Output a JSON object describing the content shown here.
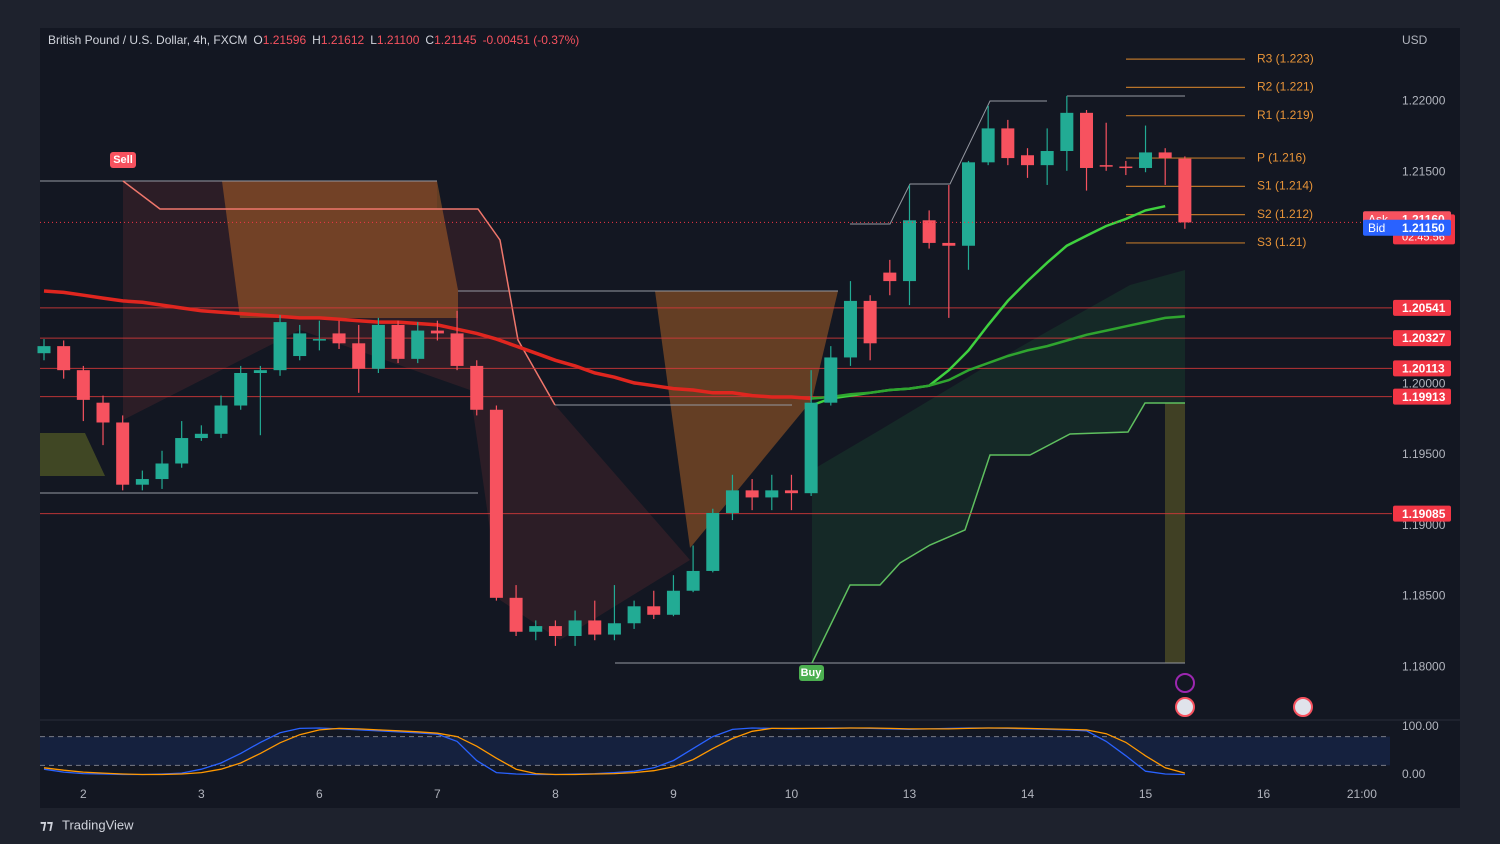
{
  "chart_data": {
    "type": "candlestick",
    "title": "British Pound / U.S. Dollar, 4h, FXCM",
    "ohlc_header": [
      {
        "name": "O",
        "value": 1.21596,
        "label": "1.21596"
      },
      {
        "name": "H",
        "value": 1.21612,
        "label": "1.21612"
      },
      {
        "name": "L",
        "value": 1.211,
        "label": "1.21100"
      },
      {
        "name": "C",
        "value": 1.21145,
        "label": "1.21145"
      }
    ],
    "change": "-0.00451 (-0.37%)",
    "currency": "USD",
    "categories": [
      null,
      null,
      "2",
      null,
      null,
      null,
      null,
      null,
      "3",
      null,
      null,
      null,
      null,
      null,
      "6",
      null,
      null,
      null,
      null,
      null,
      "7",
      null,
      null,
      null,
      null,
      null,
      "8",
      null,
      null,
      null,
      null,
      null,
      "9",
      null,
      null,
      null,
      null,
      null,
      "10",
      null,
      null,
      null,
      null,
      null,
      "13",
      null,
      null,
      null,
      null,
      null,
      "14",
      null,
      null,
      null,
      null,
      null,
      "15",
      null,
      null,
      null,
      null,
      null,
      "16",
      null,
      null,
      null,
      null,
      "21:00"
    ],
    "open": [
      1.2022,
      1.2027,
      1.201,
      1.1987,
      1.1973,
      1.1929,
      1.1933,
      1.1944,
      1.1962,
      1.1965,
      1.1985,
      1.2008,
      1.201,
      1.202,
      1.2031,
      1.2036,
      1.2029,
      1.2011,
      1.2042,
      1.2018,
      1.2038,
      1.2036,
      1.2013,
      1.1982,
      1.1849,
      1.1825,
      1.1829,
      1.1822,
      1.1833,
      1.1823,
      1.1831,
      1.1843,
      1.1837,
      1.1854,
      1.1868,
      1.1909,
      1.1925,
      1.192,
      1.1925,
      1.1923,
      1.1987,
      1.2019,
      1.2059,
      1.2079,
      1.2073,
      1.2116,
      1.21,
      1.2098,
      1.2157,
      1.2181,
      1.2162,
      1.2155,
      1.2165,
      1.2192,
      1.2155,
      1.2154,
      1.2153,
      1.2164,
      1.21596,
      null,
      null,
      null,
      null,
      null,
      null,
      null,
      null,
      null
    ],
    "high": [
      1.2032,
      1.2031,
      1.2013,
      1.1992,
      1.1978,
      1.1939,
      1.1953,
      1.1974,
      1.1971,
      1.1992,
      1.2013,
      1.2013,
      1.2049,
      1.2042,
      1.2045,
      1.2045,
      1.2042,
      1.2047,
      1.2045,
      1.2044,
      1.2045,
      1.2052,
      1.2017,
      1.1985,
      1.1858,
      1.1833,
      1.1833,
      1.184,
      1.1847,
      1.1858,
      1.1847,
      1.1854,
      1.1865,
      1.1886,
      1.1912,
      1.1936,
      1.1933,
      1.1936,
      1.1936,
      1.201,
      1.2027,
      1.2073,
      1.2063,
      1.2088,
      1.2141,
      1.2123,
      1.2141,
      1.2158,
      1.2197,
      1.2187,
      1.2167,
      1.2181,
      1.2204,
      1.2194,
      1.2185,
      1.2158,
      1.2183,
      1.2167,
      1.21612,
      null,
      null,
      null,
      null,
      null,
      null,
      null,
      null,
      null
    ],
    "low": [
      1.2017,
      1.2004,
      1.1974,
      1.1957,
      1.1925,
      1.1925,
      1.1926,
      1.1941,
      1.196,
      1.1962,
      1.1982,
      1.1964,
      1.2006,
      1.2017,
      1.2024,
      1.2025,
      1.1994,
      1.2008,
      1.2015,
      1.2015,
      1.2031,
      1.201,
      1.1978,
      1.1847,
      1.1822,
      1.1819,
      1.1815,
      1.1815,
      1.1819,
      1.1819,
      1.1827,
      1.1834,
      1.1836,
      1.1853,
      1.1867,
      1.1904,
      1.1911,
      1.1911,
      1.1911,
      1.1921,
      1.1985,
      1.2013,
      1.2017,
      1.2063,
      1.2056,
      1.2096,
      1.2047,
      1.2081,
      1.2155,
      1.2155,
      1.2146,
      1.2141,
      1.2151,
      1.2137,
      1.2151,
      1.2148,
      1.215,
      1.2141,
      1.211,
      null,
      null,
      null,
      null,
      null,
      null,
      null,
      null,
      null
    ],
    "close": [
      1.2027,
      1.201,
      1.1989,
      1.1973,
      1.1929,
      1.1933,
      1.1944,
      1.1962,
      1.1965,
      1.1985,
      1.2008,
      1.201,
      1.2044,
      1.2036,
      1.2032,
      1.2029,
      1.2011,
      1.2042,
      1.2018,
      1.2038,
      1.2036,
      1.2013,
      1.1982,
      1.1849,
      1.1825,
      1.1829,
      1.1822,
      1.1833,
      1.1823,
      1.1831,
      1.1843,
      1.1837,
      1.1854,
      1.1868,
      1.1909,
      1.1925,
      1.192,
      1.1925,
      1.1923,
      1.1987,
      1.2019,
      1.2059,
      1.2029,
      1.2073,
      1.2116,
      1.21,
      1.2098,
      1.2157,
      1.2181,
      1.216,
      1.2155,
      1.2165,
      1.2192,
      1.2153,
      1.2154,
      1.2153,
      1.2164,
      1.216,
      1.21145,
      null,
      null,
      null,
      null,
      null,
      null,
      null,
      null,
      null
    ],
    "up_color": "#22ab94",
    "down_color": "#f7525f",
    "overlays": [
      {
        "color": "#e0261f",
        "values": [
          1.2066,
          1.2065,
          1.2063,
          1.2061,
          1.2059,
          1.2058,
          1.2056,
          1.2054,
          1.2052,
          1.2051,
          1.205,
          1.2049,
          1.2048,
          1.2047,
          1.2047,
          1.2046,
          1.2045,
          1.2044,
          1.2044,
          1.2043,
          1.2042,
          1.2039,
          1.2036,
          1.2032,
          1.2027,
          1.2022,
          1.2017,
          1.2013,
          1.2008,
          1.2005,
          1.2001,
          1.1999,
          1.1997,
          1.1996,
          1.1994,
          1.1994,
          1.1992,
          1.1991,
          1.1991,
          1.199,
          null,
          null,
          null,
          null,
          null,
          null,
          null,
          null,
          null,
          null,
          null,
          null,
          null,
          null,
          null,
          null,
          null,
          null,
          null,
          null,
          null,
          null,
          null,
          null,
          null,
          null,
          null,
          null
        ]
      },
      {
        "color": "#3fd13f",
        "values": [
          null,
          null,
          null,
          null,
          null,
          null,
          null,
          null,
          null,
          null,
          null,
          null,
          null,
          null,
          null,
          null,
          null,
          null,
          null,
          null,
          null,
          null,
          null,
          null,
          null,
          null,
          null,
          null,
          null,
          null,
          null,
          null,
          null,
          null,
          null,
          null,
          null,
          null,
          null,
          1.1985,
          1.199,
          1.1992,
          1.1994,
          1.1996,
          1.1997,
          1.1999,
          1.201,
          1.2024,
          1.2042,
          1.2059,
          1.2073,
          1.2086,
          1.2098,
          1.2105,
          1.2112,
          1.2117,
          1.2123,
          1.2126,
          null,
          null,
          null,
          null,
          null,
          null,
          null,
          null,
          null,
          null
        ]
      },
      {
        "color": "#2fa52f",
        "values": [
          null,
          null,
          null,
          null,
          null,
          null,
          null,
          null,
          null,
          null,
          null,
          null,
          null,
          null,
          null,
          null,
          null,
          null,
          null,
          null,
          null,
          null,
          null,
          null,
          null,
          null,
          null,
          null,
          null,
          null,
          null,
          null,
          null,
          null,
          null,
          null,
          null,
          null,
          null,
          1.199,
          1.1991,
          1.1993,
          1.1994,
          1.1996,
          1.1997,
          1.1999,
          1.2003,
          1.201,
          1.2015,
          1.202,
          1.2024,
          1.2027,
          1.2031,
          1.2035,
          1.2038,
          1.2041,
          1.2044,
          1.2047,
          1.2048,
          null,
          null,
          null,
          null,
          null,
          null,
          null,
          null,
          null
        ]
      }
    ],
    "ylim": [
      1.1764,
      1.2252
    ],
    "yticks": [
      {
        "value": 1.22,
        "label": "1.22000"
      },
      {
        "value": 1.215,
        "label": "1.21500"
      },
      {
        "value": 1.2,
        "label": "1.20000"
      },
      {
        "value": 1.195,
        "label": "1.19500"
      },
      {
        "value": 1.19,
        "label": "1.19000"
      },
      {
        "value": 1.185,
        "label": "1.18500"
      },
      {
        "value": 1.18,
        "label": "1.18000"
      }
    ],
    "price_lines": [
      1.20541,
      1.20327,
      1.20113,
      1.19913,
      1.19085
    ],
    "pivots": [
      {
        "value": 1.223,
        "label": "R3 (1.223)"
      },
      {
        "value": 1.221,
        "label": "R2 (1.221)"
      },
      {
        "value": 1.219,
        "label": "R1 (1.219)"
      },
      {
        "value": 1.216,
        "label": "P (1.216)"
      },
      {
        "value": 1.214,
        "label": "S1 (1.214)"
      },
      {
        "value": 1.212,
        "label": "S2 (1.212)"
      },
      {
        "value": 1.21,
        "label": "S3 (1.21)"
      }
    ],
    "quotes": [
      {
        "name": "Ask",
        "value": 1.2116,
        "label": "1.21160",
        "color": "#f7525f"
      },
      {
        "name": "Bid",
        "value": 1.2115,
        "label": "1.21150",
        "color": "#2962ff"
      }
    ],
    "last_price": {
      "value": 1.21145,
      "label": "1.21145",
      "countdown": "02:45:56"
    },
    "signals": [
      "Sell",
      "Buy"
    ],
    "oscillator": {
      "ylim": [
        0,
        100
      ],
      "yticks": [
        {
          "value": 100,
          "label": "100.00"
        },
        {
          "value": 0,
          "label": "0.00"
        }
      ],
      "bands": [
        80,
        20
      ],
      "series": [
        {
          "color": "#2962ff",
          "values": [
            12,
            6,
            3,
            2,
            1,
            1,
            2,
            4,
            12,
            25,
            45,
            68,
            88,
            97,
            98,
            96,
            94,
            92,
            90,
            88,
            85,
            70,
            30,
            5,
            2,
            1,
            1,
            2,
            3,
            5,
            8,
            15,
            30,
            55,
            80,
            95,
            98,
            97,
            96,
            97,
            98,
            98,
            97,
            96,
            95,
            96,
            97,
            98,
            98,
            97,
            96,
            95,
            94,
            92,
            70,
            40,
            8,
            2,
            1,
            null,
            null,
            null,
            null,
            null,
            null,
            null,
            null,
            null
          ]
        },
        {
          "color": "#ff9800",
          "values": [
            15,
            10,
            6,
            4,
            2,
            1,
            1,
            2,
            5,
            12,
            25,
            45,
            67,
            84,
            94,
            97,
            96,
            94,
            92,
            90,
            87,
            80,
            60,
            35,
            12,
            3,
            1,
            1,
            2,
            3,
            5,
            9,
            17,
            32,
            55,
            76,
            91,
            97,
            97,
            97,
            97,
            98,
            98,
            97,
            96,
            96,
            96,
            97,
            98,
            98,
            97,
            96,
            95,
            94,
            86,
            68,
            40,
            15,
            4,
            null,
            null,
            null,
            null,
            null,
            null,
            null,
            null,
            null
          ]
        }
      ]
    },
    "footer": "TradingView"
  }
}
